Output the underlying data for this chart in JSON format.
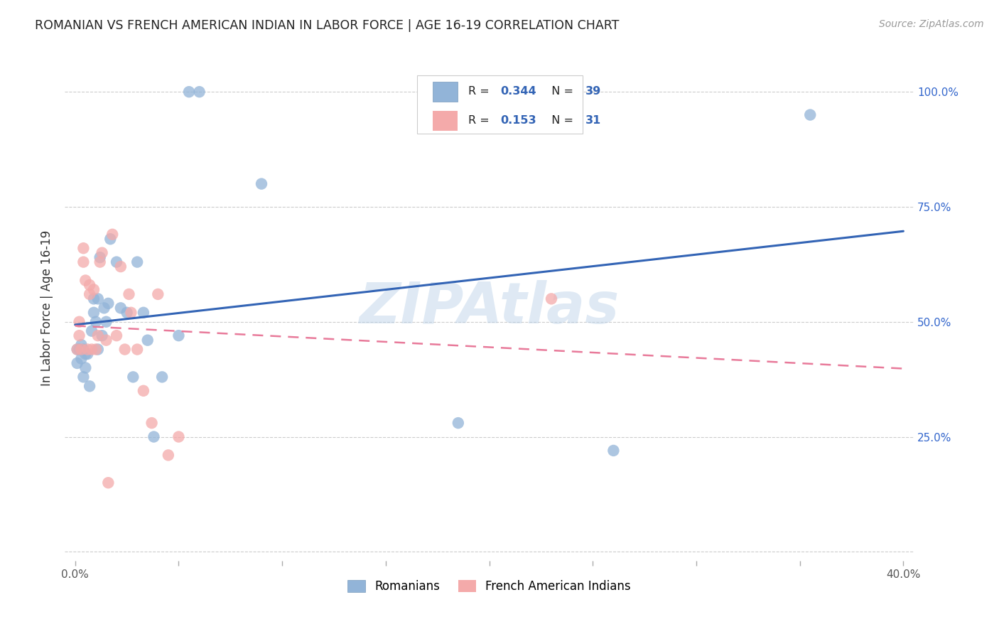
{
  "title": "ROMANIAN VS FRENCH AMERICAN INDIAN IN LABOR FORCE | AGE 16-19 CORRELATION CHART",
  "source": "Source: ZipAtlas.com",
  "ylabel": "In Labor Force | Age 16-19",
  "xlim": [
    -0.005,
    0.405
  ],
  "ylim": [
    -0.02,
    1.08
  ],
  "xticks": [
    0.0,
    0.05,
    0.1,
    0.15,
    0.2,
    0.25,
    0.3,
    0.35,
    0.4
  ],
  "xticklabels": [
    "0.0%",
    "",
    "",
    "",
    "",
    "",
    "",
    "",
    "40.0%"
  ],
  "yticks": [
    0.0,
    0.25,
    0.5,
    0.75,
    1.0
  ],
  "yticklabels_right": [
    "",
    "25.0%",
    "50.0%",
    "75.0%",
    "100.0%"
  ],
  "legend_r1": "0.344",
  "legend_n1": "39",
  "legend_r2": "0.153",
  "legend_n2": "31",
  "blue_color": "#92B4D8",
  "pink_color": "#F4AAAA",
  "trend_blue": "#3364B5",
  "trend_pink": "#E87A9A",
  "watermark": "ZIPAtlas",
  "watermark_color": "#B8D0E8",
  "blue_x": [
    0.001,
    0.001,
    0.002,
    0.003,
    0.003,
    0.004,
    0.004,
    0.005,
    0.005,
    0.006,
    0.007,
    0.008,
    0.009,
    0.009,
    0.01,
    0.011,
    0.011,
    0.012,
    0.013,
    0.014,
    0.015,
    0.016,
    0.017,
    0.02,
    0.022,
    0.025,
    0.028,
    0.03,
    0.033,
    0.035,
    0.038,
    0.042,
    0.05,
    0.055,
    0.06,
    0.09,
    0.185,
    0.26,
    0.355
  ],
  "blue_y": [
    0.44,
    0.41,
    0.44,
    0.45,
    0.42,
    0.44,
    0.38,
    0.43,
    0.4,
    0.43,
    0.36,
    0.48,
    0.52,
    0.55,
    0.5,
    0.44,
    0.55,
    0.64,
    0.47,
    0.53,
    0.5,
    0.54,
    0.68,
    0.63,
    0.53,
    0.52,
    0.38,
    0.63,
    0.52,
    0.46,
    0.25,
    0.38,
    0.47,
    1.0,
    1.0,
    0.8,
    0.28,
    0.22,
    0.95
  ],
  "pink_x": [
    0.001,
    0.002,
    0.002,
    0.003,
    0.004,
    0.004,
    0.005,
    0.006,
    0.007,
    0.007,
    0.008,
    0.009,
    0.01,
    0.011,
    0.012,
    0.013,
    0.015,
    0.016,
    0.018,
    0.02,
    0.022,
    0.024,
    0.026,
    0.027,
    0.03,
    0.033,
    0.037,
    0.04,
    0.045,
    0.05,
    0.23
  ],
  "pink_y": [
    0.44,
    0.47,
    0.5,
    0.44,
    0.63,
    0.66,
    0.59,
    0.44,
    0.56,
    0.58,
    0.44,
    0.57,
    0.44,
    0.47,
    0.63,
    0.65,
    0.46,
    0.15,
    0.69,
    0.47,
    0.62,
    0.44,
    0.56,
    0.52,
    0.44,
    0.35,
    0.28,
    0.56,
    0.21,
    0.25,
    0.55
  ]
}
